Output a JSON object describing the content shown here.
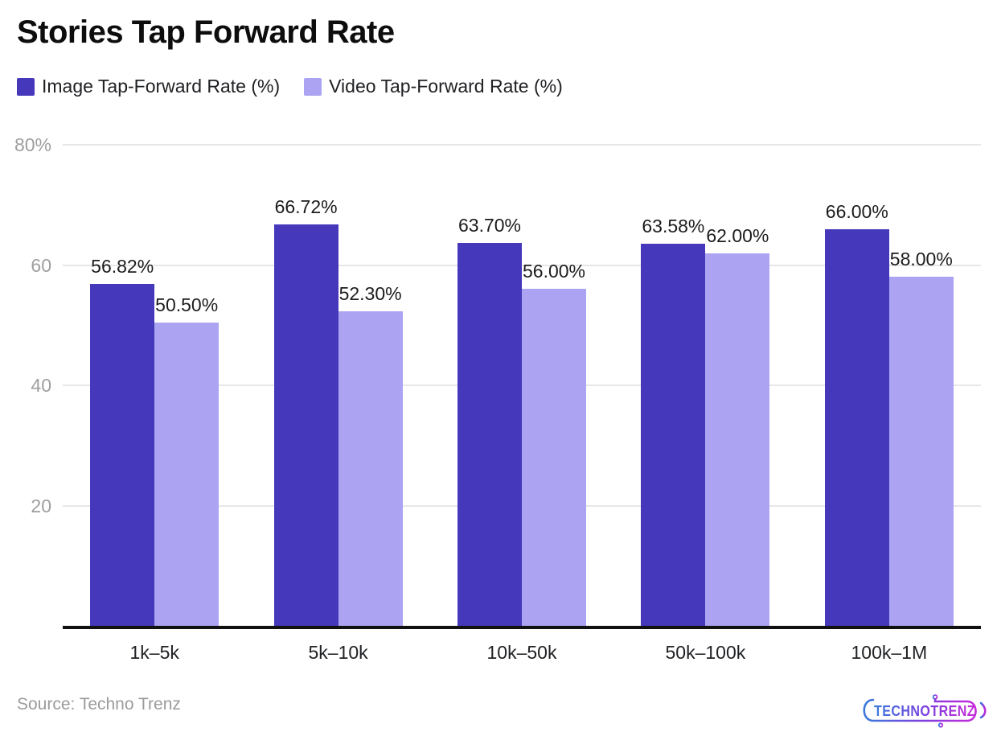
{
  "header": {
    "title": "Stories Tap Forward Rate"
  },
  "chart_data": {
    "type": "bar",
    "title": "Stories Tap Forward Rate",
    "categories": [
      "1k–5k",
      "5k–10k",
      "10k–50k",
      "50k–100k",
      "100k–1M"
    ],
    "series": [
      {
        "name": "Image Tap-Forward Rate (%)",
        "color": "#4538bb",
        "values": [
          56.82,
          66.72,
          63.7,
          63.58,
          66.0
        ],
        "labels": [
          "56.82%",
          "66.72%",
          "63.70%",
          "63.58%",
          "66.00%"
        ]
      },
      {
        "name": "Video Tap-Forward Rate (%)",
        "color": "#aca4f2",
        "values": [
          50.5,
          52.3,
          56.0,
          62.0,
          58.0
        ],
        "labels": [
          "50.50%",
          "52.30%",
          "56.00%",
          "62.00%",
          "58.00%"
        ]
      }
    ],
    "xlabel": "",
    "ylabel": "",
    "ylim": [
      0,
      80
    ],
    "grid": true,
    "legend_position": "top-left",
    "y_ticks": [
      {
        "value": 80,
        "label": "80%"
      },
      {
        "value": 60,
        "label": "60"
      },
      {
        "value": 40,
        "label": "40"
      },
      {
        "value": 20,
        "label": "20"
      }
    ]
  },
  "footer": {
    "source": "Source: Techno Trenz",
    "logo_text": "TECHNOTRENZ"
  }
}
